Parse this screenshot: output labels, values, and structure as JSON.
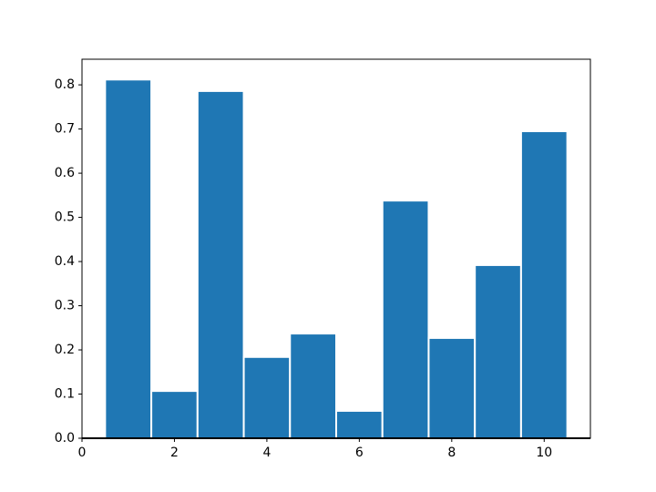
{
  "chart_data": {
    "type": "bar",
    "x": [
      1,
      2,
      3,
      4,
      5,
      6,
      7,
      8,
      9,
      10
    ],
    "values": [
      0.812,
      0.107,
      0.786,
      0.184,
      0.237,
      0.062,
      0.538,
      0.227,
      0.392,
      0.695
    ],
    "color": "#1f77b4",
    "xlim": [
      0,
      11
    ],
    "xticks": [
      0,
      2,
      4,
      6,
      8,
      10
    ],
    "ylim": [
      0,
      0.858
    ],
    "yticks": [
      {
        "value": 0,
        "label": "0.0"
      },
      0.1,
      0.2,
      0.3,
      0.4,
      0.5,
      0.6,
      0.7,
      0.8
    ],
    "grid": false
  }
}
